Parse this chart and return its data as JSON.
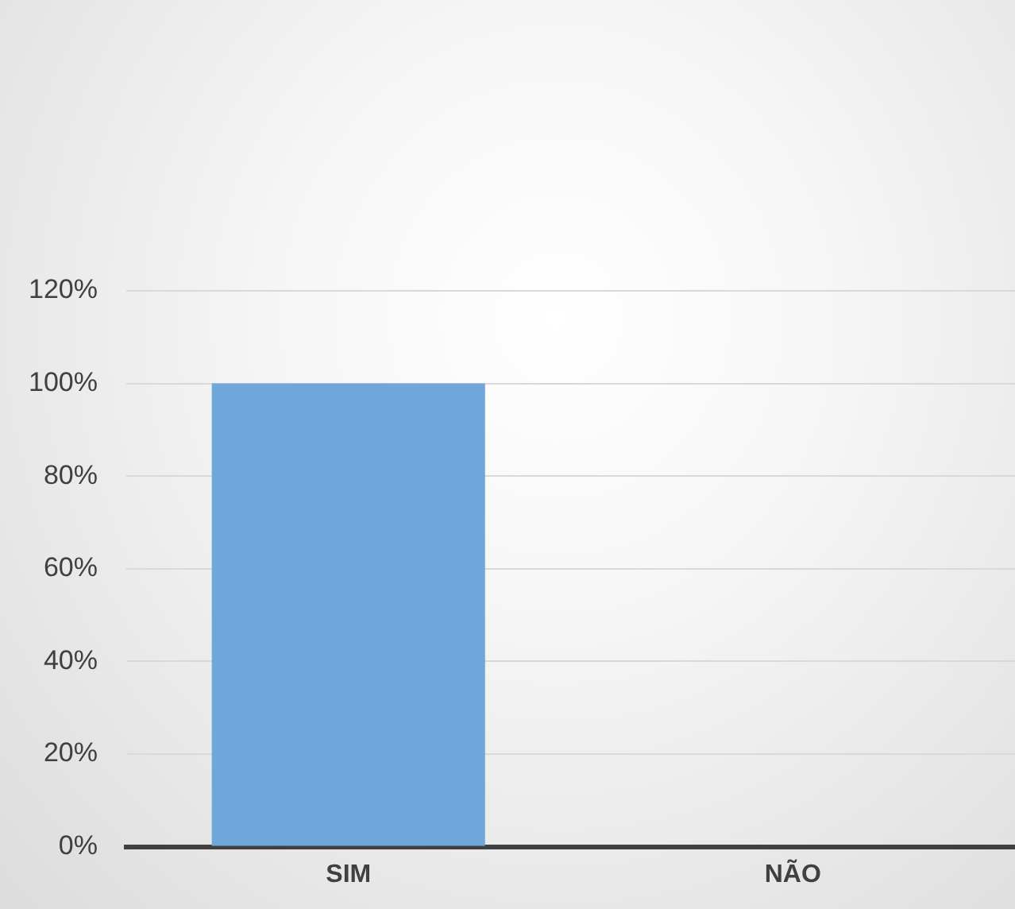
{
  "chart_data": {
    "type": "bar",
    "categories": [
      "SIM",
      "NÃO"
    ],
    "values": [
      100,
      0
    ],
    "color": "#6fa7db",
    "ylim": [
      0,
      120
    ],
    "yticks": [
      {
        "value": 0,
        "label": "0%"
      },
      {
        "value": 20,
        "label": "20%"
      },
      {
        "value": 40,
        "label": "40%"
      },
      {
        "value": 60,
        "label": "60%"
      },
      {
        "value": 80,
        "label": "80%"
      },
      {
        "value": 100,
        "label": "100%"
      },
      {
        "value": 120,
        "label": "120%"
      }
    ],
    "grid": "y",
    "legend": false
  }
}
